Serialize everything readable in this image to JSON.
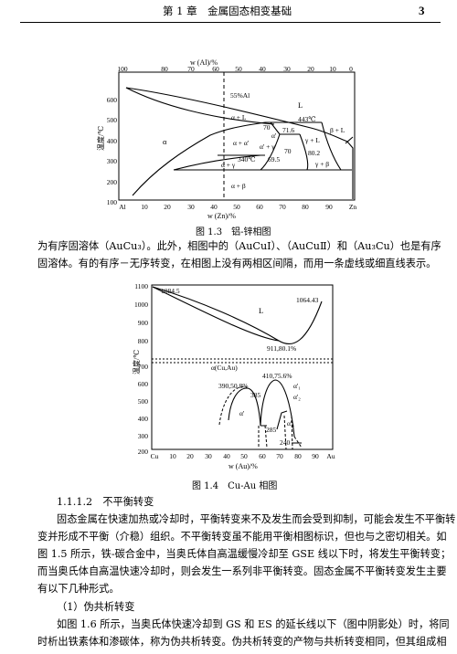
{
  "header": {
    "chapter": "第 1 章　金属固态相变基础",
    "page_number": "3"
  },
  "figure_1_3": {
    "caption": "图 1.3　铝-锌相图",
    "top_axis_label": "w (Al)/%",
    "bottom_axis_label": "w (Zn)/%",
    "y_axis_label": "温度/℃",
    "top_ticks": [
      "100",
      "80",
      "70",
      "60",
      "50",
      "40",
      "30",
      "20",
      "10",
      "0"
    ],
    "bottom_ticks": [
      "Al",
      "10",
      "20",
      "30",
      "40",
      "50",
      "60",
      "70",
      "80",
      "90",
      "Zn"
    ],
    "y_ticks": [
      "600",
      "500",
      "400",
      "300",
      "200",
      "100"
    ],
    "labels": {
      "al55": "55%Al",
      "L": "L",
      "alpha_L": "α + L",
      "t443": "443℃",
      "beta_L": "β + L",
      "alpha": "α",
      "alpha_alpha2": "α + α'",
      "alpha2": "α'",
      "v70a": "70",
      "v716": "71.6",
      "v70b": "70",
      "gamma_L": "γ + L",
      "alpha2_gamma": "α' + γ",
      "v802": "80.2",
      "t340": "340℃",
      "v695": "69.5",
      "alpha_gamma": "α + γ",
      "gamma_beta": "γ + β",
      "alpha_beta": "α + β"
    }
  },
  "paragraph_1": [
    "为有序固溶体（AuCu₃）。此外，相图中的（AuCuⅠ）、（AuCuⅡ）和（Au₃Cu）也是有序",
    "固溶体。有的有序－无序转变，在相图上没有两相区间隔，而用一条虚线或细直线表示。"
  ],
  "figure_1_4": {
    "caption": "图 1.4　Cu-Au 相图",
    "y_axis_label": "温度/℃",
    "x_axis_label": "w (Au)/%",
    "y_ticks": [
      "1100",
      "1000",
      "900",
      "800",
      "700",
      "600",
      "500",
      "400",
      "300",
      "200"
    ],
    "x_ticks": [
      "Cu",
      "10",
      "20",
      "30",
      "40",
      "50",
      "60",
      "70",
      "80",
      "90",
      "Au"
    ],
    "labels": {
      "t10845": "1084.5",
      "t106443": "1064.43",
      "L": "L",
      "min": "911,80.1%",
      "alpha_cuau": "α(Cu,Au)",
      "p3905": "390,50.8%",
      "p4107": "410,75.6%",
      "v385": "385",
      "alpha2_1": "α'₁",
      "alpha2": "α'",
      "alpha2_2": "α'₂",
      "alpha2_3": "α'₃",
      "v285": "285",
      "v240": "240"
    }
  },
  "section": {
    "number": "1.1.1.2",
    "title": "不平衡转变"
  },
  "paragraph_2": [
    "固态金属在快速加热或冷却时，平衡转变来不及发生而会受到抑制，可能会发生不平衡转",
    "变并形成不平衡（介稳）组织。不平衡转变虽不能用平衡相图标识，但也与之密切相关。如",
    "图 1.5 所示，铁-碳合金中，当奥氏体自高温缓慢冷却至 GSE 线以下时，将发生平衡转变；",
    "而当奥氏体自高温快速冷却时，则会发生一系列非平衡转变。固态金属不平衡转变发生主要",
    "有以下几种形式。"
  ],
  "subsection": "（1）伪共析转变",
  "paragraph_3": [
    "如图 1.6 所示，当奥氏体快速冷却到 GS 和 ES 的延长线以下（图中阴影处）时，将同",
    "时析出铁素体和渗碳体，称为伪共析转变。伪共析转变的产物与共析转变相同，但其组成相"
  ]
}
